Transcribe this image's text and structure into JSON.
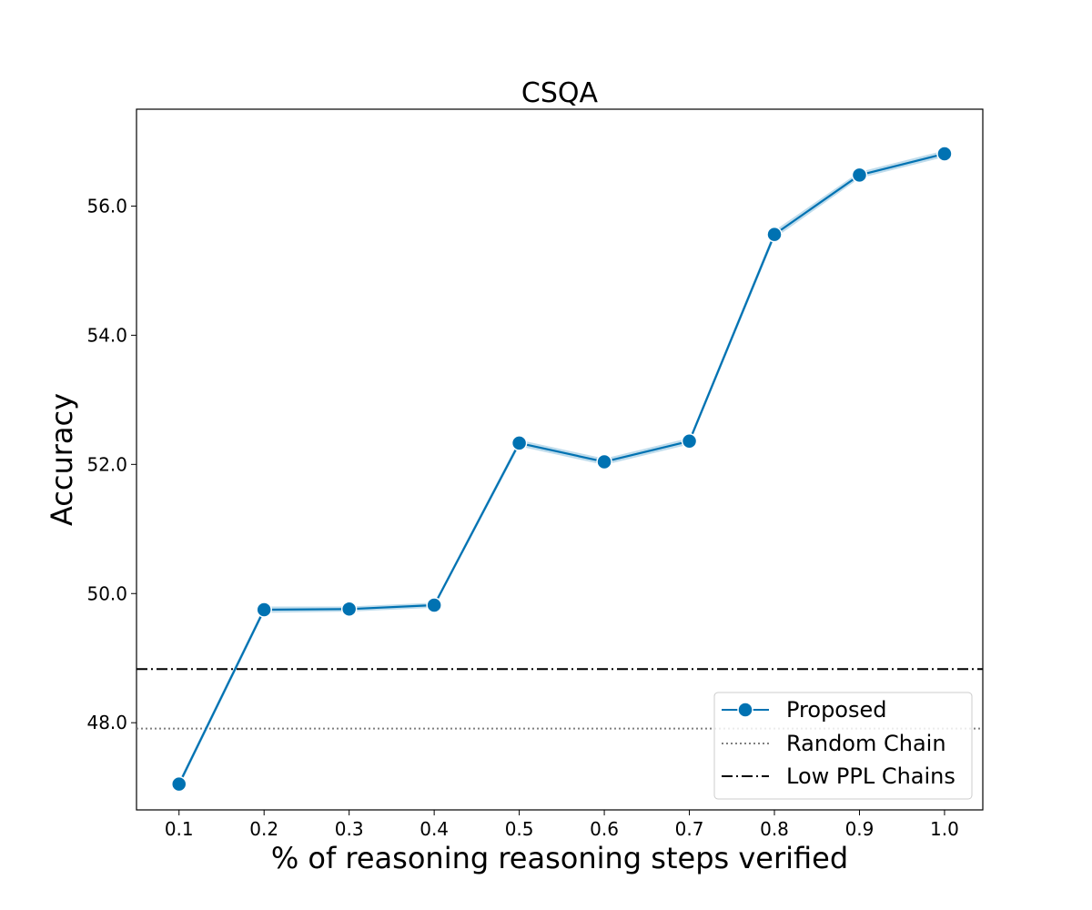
{
  "chart_data": {
    "type": "line",
    "title": "CSQA",
    "xlabel": "% of reasoning reasoning steps verified",
    "ylabel": "Accuracy",
    "x": [
      0.1,
      0.2,
      0.3,
      0.4,
      0.5,
      0.6,
      0.7,
      0.8,
      0.9,
      1.0
    ],
    "xticks": [
      "0.1",
      "0.2",
      "0.3",
      "0.4",
      "0.5",
      "0.6",
      "0.7",
      "0.8",
      "0.9",
      "1.0"
    ],
    "yticks": [
      "48.0",
      "50.0",
      "52.0",
      "54.0",
      "56.0"
    ],
    "xlim": [
      0.05,
      1.045
    ],
    "ylim": [
      46.65,
      57.5
    ],
    "grid": false,
    "legend_position": "lower-right",
    "series": [
      {
        "name": "Proposed",
        "style": "solid-marker",
        "color": "#0072B2",
        "values": [
          47.05,
          49.75,
          49.76,
          49.82,
          52.33,
          52.04,
          52.36,
          55.56,
          56.48,
          56.81
        ],
        "band_lower": [
          47.0,
          49.7,
          49.72,
          49.78,
          52.28,
          51.99,
          52.31,
          55.5,
          56.43,
          56.76
        ],
        "band_upper": [
          47.1,
          49.8,
          49.8,
          49.86,
          52.38,
          52.09,
          52.41,
          55.62,
          56.53,
          56.86
        ]
      },
      {
        "name": "Random Chain",
        "style": "dotted-hline",
        "color": "#808080",
        "value": 47.91
      },
      {
        "name": "Low PPL Chains",
        "style": "dashdot-hline",
        "color": "#000000",
        "value": 48.83
      }
    ]
  }
}
